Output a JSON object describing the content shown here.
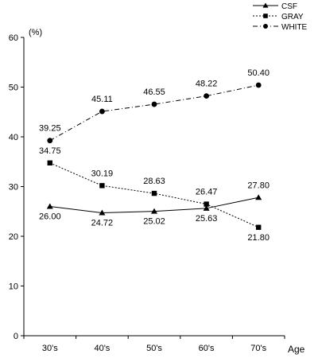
{
  "chart_data": {
    "type": "line",
    "y_unit": "(%)",
    "xlabel": "Age",
    "ylabel": "",
    "categories": [
      "30's",
      "40's",
      "50's",
      "60's",
      "70's"
    ],
    "ylim": [
      0,
      60
    ],
    "yticks": [
      "0",
      "10",
      "20",
      "30",
      "40",
      "50",
      "60"
    ],
    "grid": false,
    "legend_position": "top-right",
    "series": [
      {
        "name": "CSF",
        "marker": "triangle",
        "line_style": "solid",
        "values": [
          26.0,
          24.72,
          25.02,
          25.63,
          27.8
        ],
        "labels": [
          "26.00",
          "24.72",
          "25.02",
          "25.63",
          "27.80"
        ]
      },
      {
        "name": "GRAY",
        "marker": "square",
        "line_style": "dotted",
        "values": [
          34.75,
          30.19,
          28.63,
          26.47,
          21.8
        ],
        "labels": [
          "34.75",
          "30.19",
          "28.63",
          "26.47",
          "21.80"
        ]
      },
      {
        "name": "WHITE",
        "marker": "circle",
        "line_style": "dash-dot",
        "values": [
          39.25,
          45.11,
          46.55,
          48.22,
          50.4
        ],
        "labels": [
          "39.25",
          "45.11",
          "46.55",
          "48.22",
          "50.40"
        ]
      }
    ]
  }
}
